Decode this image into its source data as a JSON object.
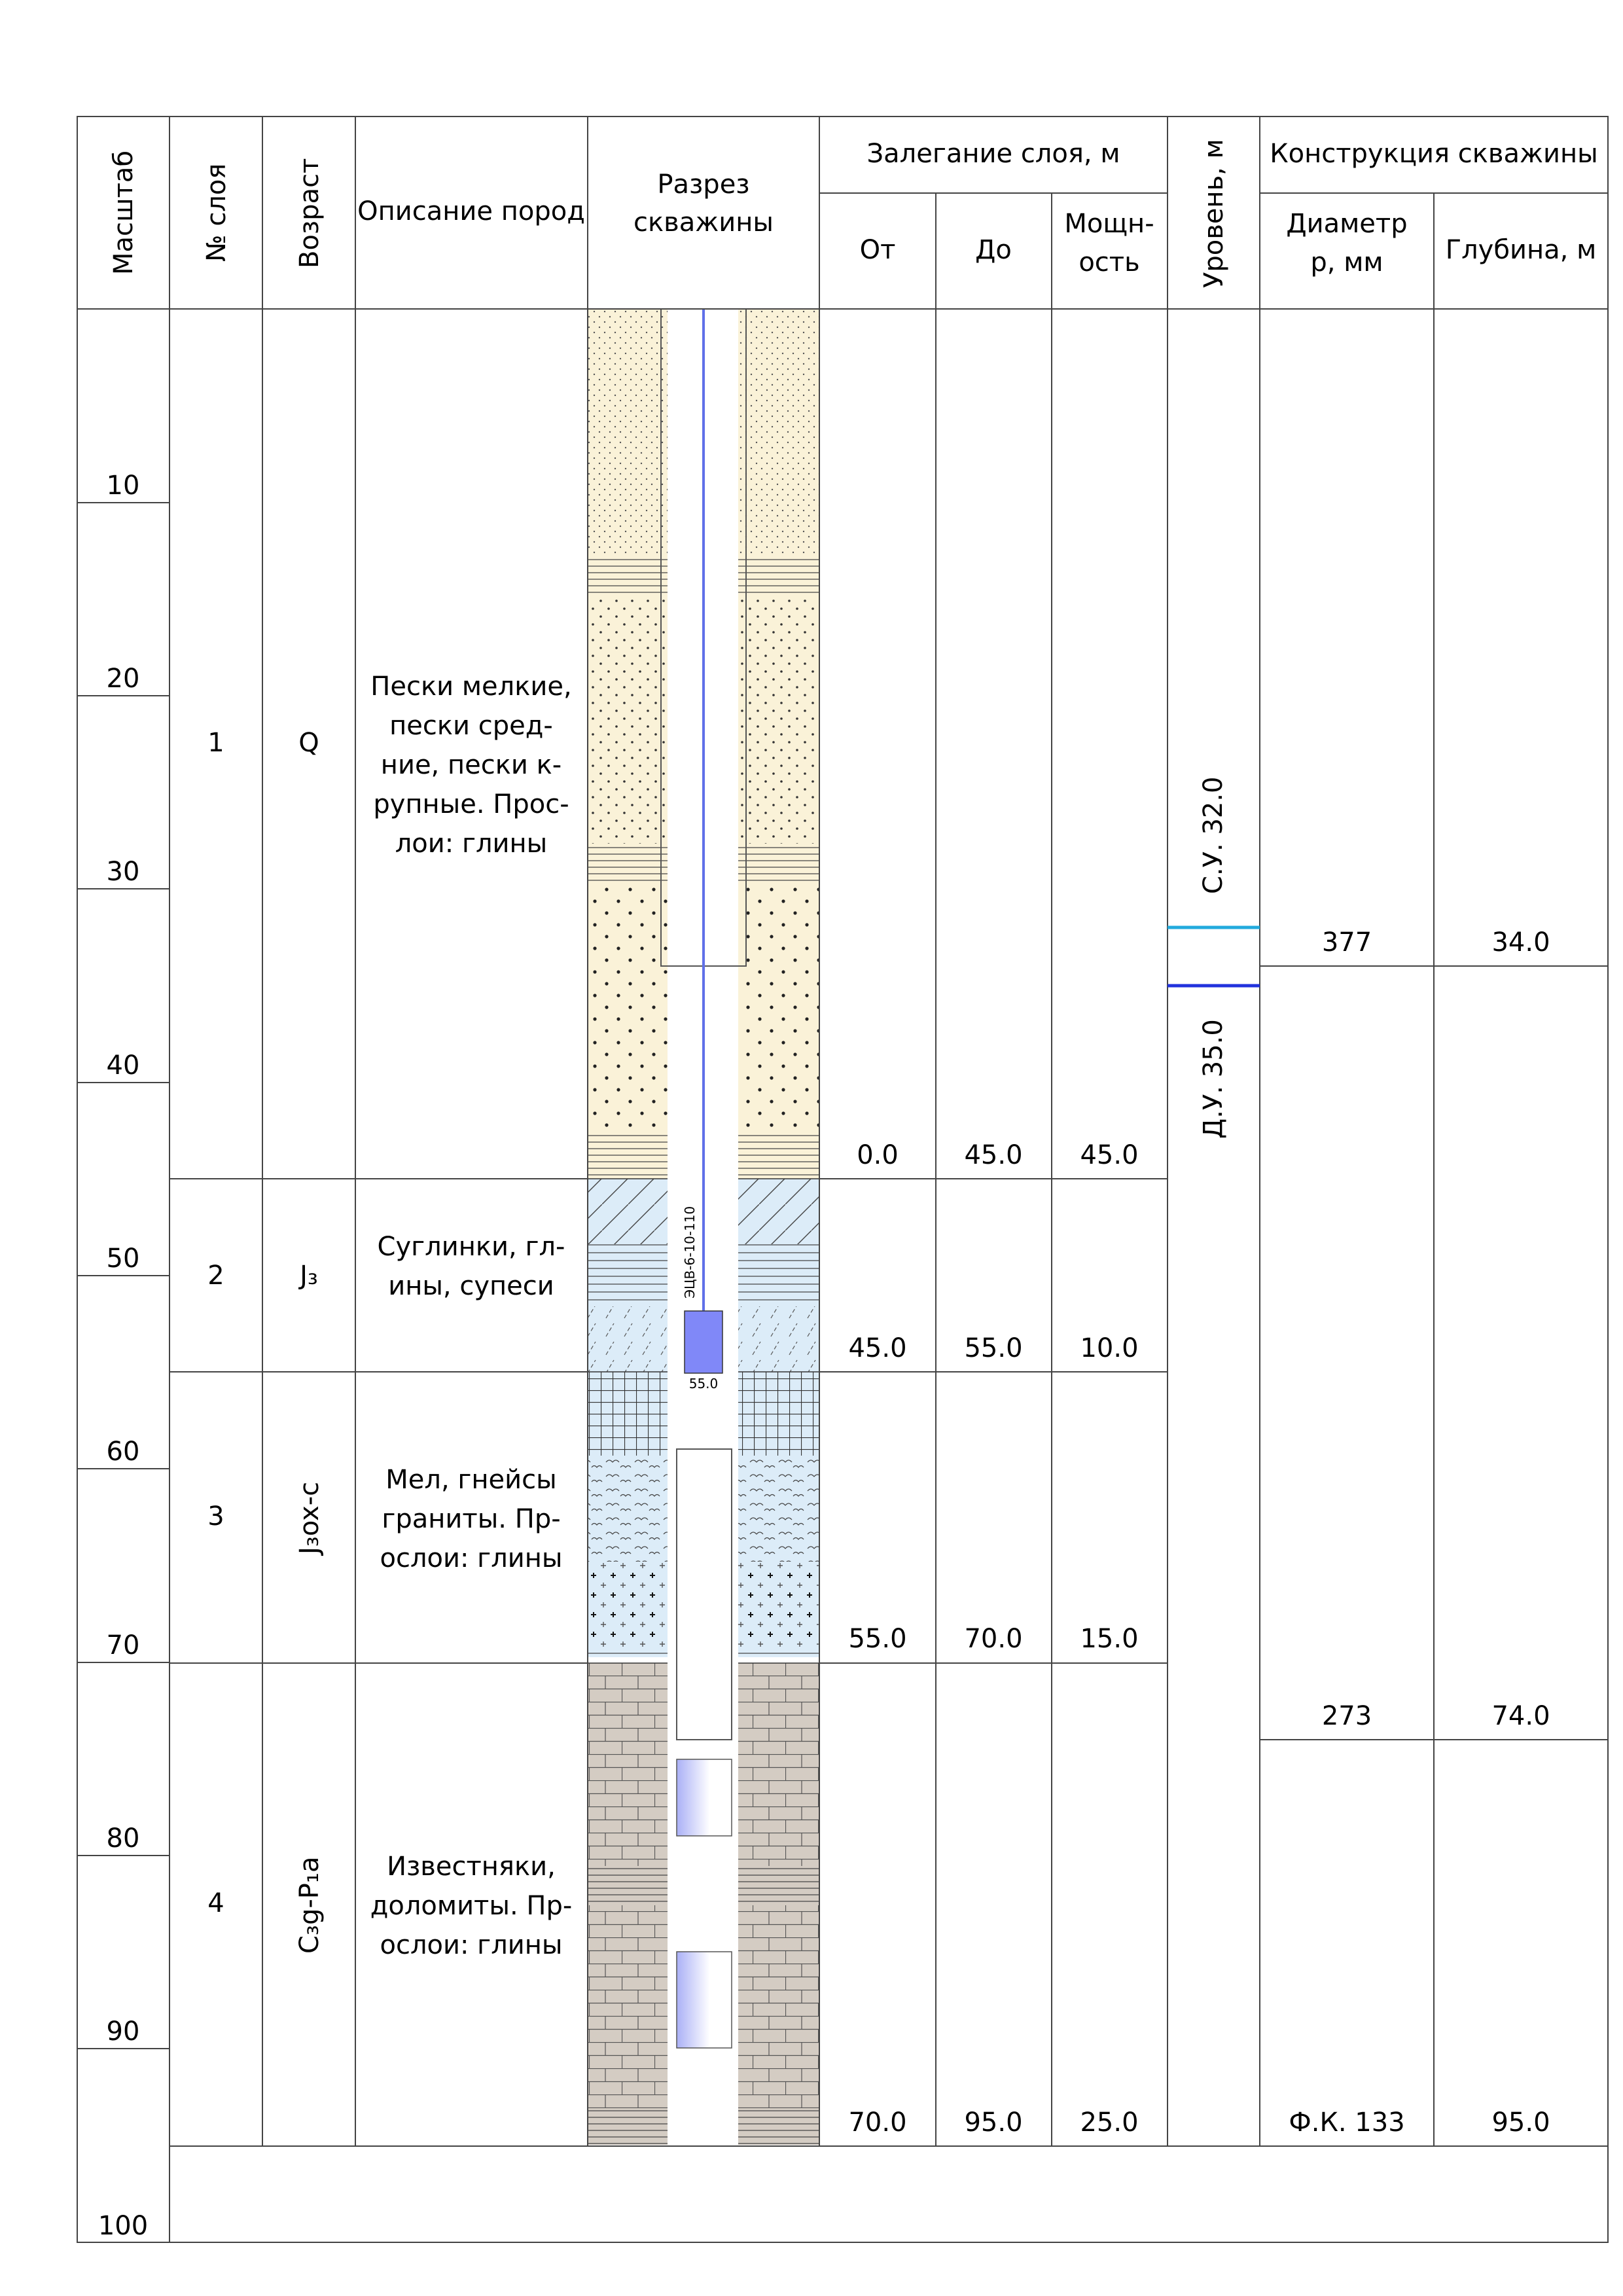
{
  "headers": {
    "scale": "Масштаб",
    "layer_no": "№ слоя",
    "age": "Возраст",
    "description": "Описание пород",
    "section_line1": "Разрез",
    "section_line2": "скважины",
    "occurrence": "Залегание слоя, м",
    "from": "От",
    "to": "До",
    "thickness_line1": "Мощн-",
    "thickness_line2": "ость",
    "level": "Уровень, м",
    "construction": "Конструкция скважины",
    "diameter_line1": "Диаметр",
    "diameter_line2": "р, мм",
    "depth": "Глубина, м"
  },
  "scale_ticks": [
    "10",
    "20",
    "30",
    "40",
    "50",
    "60",
    "70",
    "80",
    "90",
    "100"
  ],
  "layers": [
    {
      "no": "1",
      "age": "Q",
      "desc": [
        "Пески мелкие,",
        "пески сред-",
        "ние, пески к-",
        "рупные. Прос-",
        "лои: глины"
      ],
      "from": "0.0",
      "to": "45.0",
      "thickness": "45.0"
    },
    {
      "no": "2",
      "age": "J₃",
      "desc": [
        "Суглинки, гл-",
        "ины, супеси"
      ],
      "from": "45.0",
      "to": "55.0",
      "thickness": "10.0"
    },
    {
      "no": "3",
      "age": "J₃ox-c",
      "desc": [
        "Мел, гнейсы",
        "граниты. Пр-",
        "ослои: глины"
      ],
      "from": "55.0",
      "to": "70.0",
      "thickness": "15.0"
    },
    {
      "no": "4",
      "age": "C₃g-P₁a",
      "desc": [
        "Известняки,",
        "доломиты. Пр-",
        "ослои: глины"
      ],
      "from": "70.0",
      "to": "95.0",
      "thickness": "25.0"
    }
  ],
  "levels": {
    "static": "С.У. 32.0",
    "dynamic": "Д.У. 35.0"
  },
  "construction": [
    {
      "diameter": "377",
      "depth": "34.0"
    },
    {
      "diameter": "273",
      "depth": "74.0"
    },
    {
      "diameter": "Ф.К. 133",
      "depth": "95.0"
    }
  ],
  "pump": {
    "label": "ЭЦВ-6-10-110",
    "depth": "55.0"
  },
  "colors": {
    "sand": "#faf2d8",
    "loam": "#dcecf8",
    "limestone": "#d4ccc3",
    "pump": "#8088f8",
    "static_level": "#22aadd",
    "dynamic_level": "#2233dd"
  }
}
